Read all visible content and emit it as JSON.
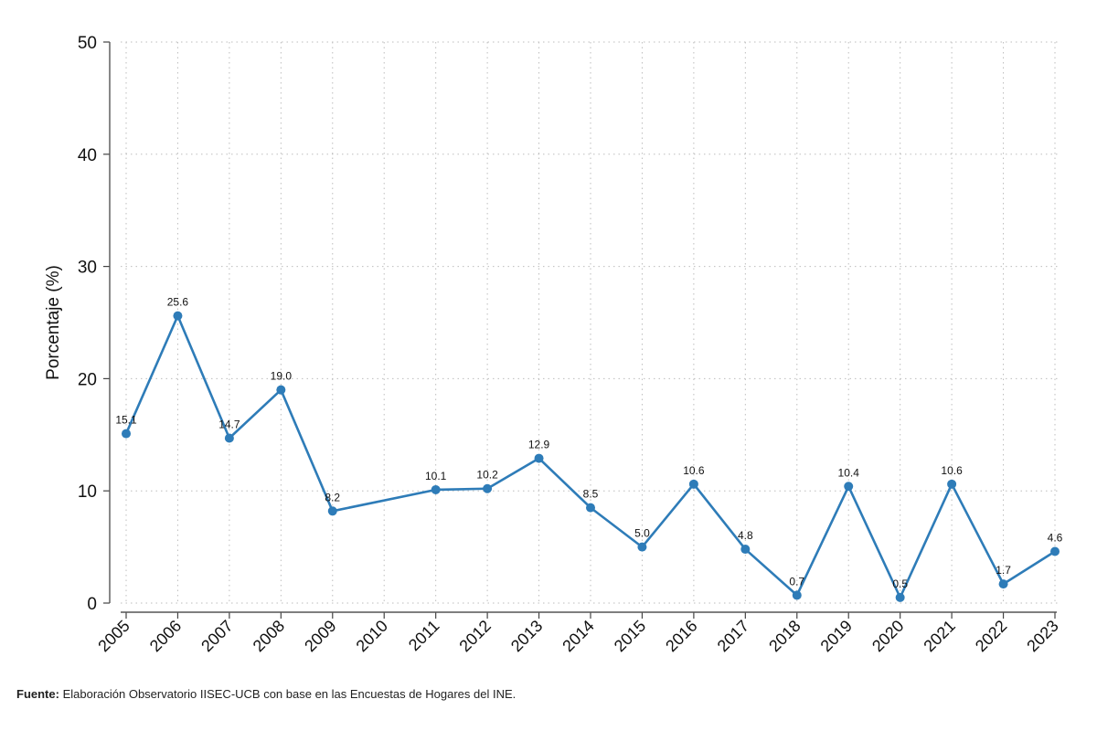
{
  "chart_data": {
    "type": "line",
    "title": "",
    "xlabel": "",
    "ylabel": "Porcentaje (%)",
    "ylim": [
      0,
      50
    ],
    "yticks": [
      0,
      10,
      20,
      30,
      40,
      50
    ],
    "grid": true,
    "x": [
      "2005",
      "2006",
      "2007",
      "2008",
      "2009",
      "2010",
      "2011",
      "2012",
      "2013",
      "2014",
      "2015",
      "2016",
      "2017",
      "2018",
      "2019",
      "2020",
      "2021",
      "2022",
      "2023"
    ],
    "series": [
      {
        "color": "#2e7cb8",
        "points": [
          {
            "x": "2005",
            "y": 15.1,
            "label": "15.1"
          },
          {
            "x": "2006",
            "y": 25.6,
            "label": "25.6"
          },
          {
            "x": "2007",
            "y": 14.7,
            "label": "14.7"
          },
          {
            "x": "2008",
            "y": 19.0,
            "label": "19.0"
          },
          {
            "x": "2009",
            "y": 8.2,
            "label": "8.2"
          },
          {
            "x": "2011",
            "y": 10.1,
            "label": "10.1"
          },
          {
            "x": "2012",
            "y": 10.2,
            "label": "10.2"
          },
          {
            "x": "2013",
            "y": 12.9,
            "label": "12.9"
          },
          {
            "x": "2014",
            "y": 8.5,
            "label": "8.5"
          },
          {
            "x": "2015",
            "y": 5.0,
            "label": "5.0"
          },
          {
            "x": "2016",
            "y": 10.6,
            "label": "10.6"
          },
          {
            "x": "2017",
            "y": 4.8,
            "label": "4.8"
          },
          {
            "x": "2018",
            "y": 0.7,
            "label": "0.7"
          },
          {
            "x": "2019",
            "y": 10.4,
            "label": "10.4"
          },
          {
            "x": "2020",
            "y": 0.5,
            "label": "0.5"
          },
          {
            "x": "2021",
            "y": 10.6,
            "label": "10.6"
          },
          {
            "x": "2022",
            "y": 1.7,
            "label": "1.7"
          },
          {
            "x": "2023",
            "y": 4.6,
            "label": "4.6"
          }
        ]
      }
    ]
  },
  "source": {
    "label": "Fuente:",
    "text": " Elaboración Observatorio IISEC-UCB con base en las Encuestas de Hogares del INE."
  }
}
